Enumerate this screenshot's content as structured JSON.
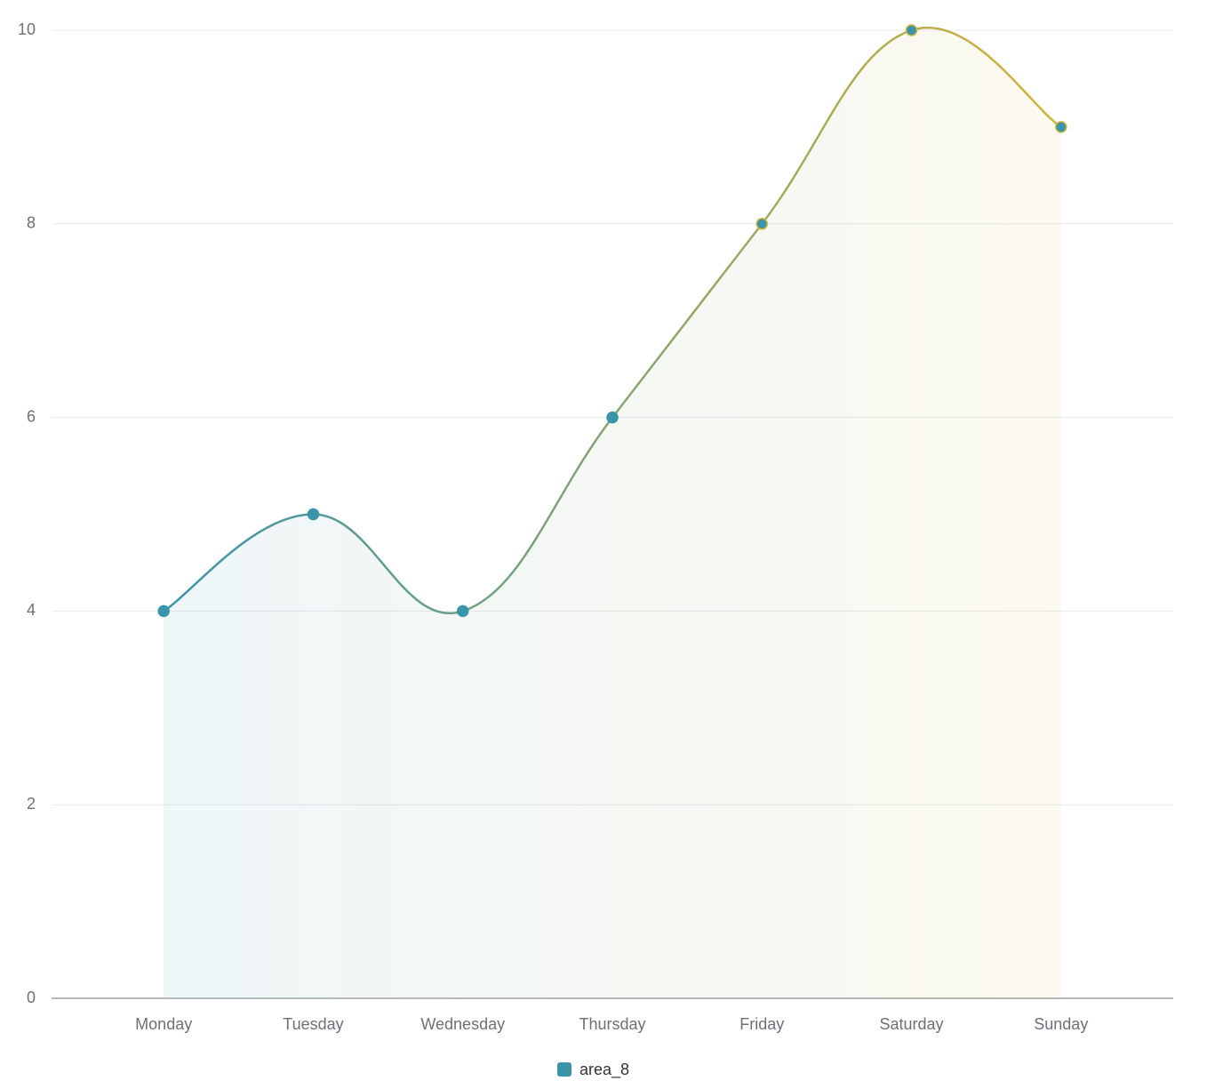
{
  "chart_data": {
    "type": "area",
    "categories": [
      "Monday",
      "Tuesday",
      "Wednesday",
      "Thursday",
      "Friday",
      "Saturday",
      "Sunday"
    ],
    "series": [
      {
        "name": "area_8",
        "colors": [
          "#3a95aa",
          "#d2b43a"
        ],
        "values": [
          4,
          5,
          4,
          6,
          8,
          10,
          9
        ]
      }
    ],
    "ylim": [
      0,
      10
    ],
    "yticks": [
      0,
      2,
      4,
      6,
      8,
      10
    ],
    "grid": true,
    "smooth": true,
    "legend": "bottom"
  }
}
